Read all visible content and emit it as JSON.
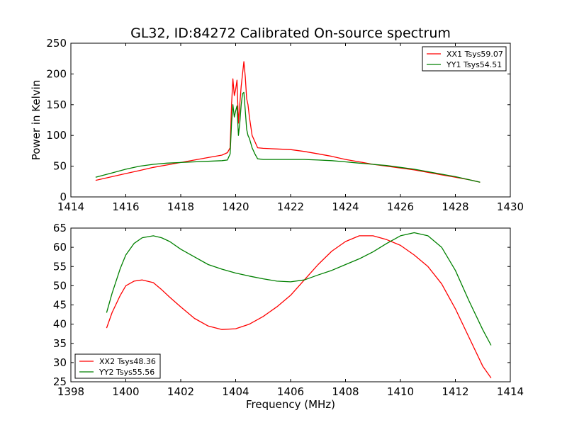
{
  "chart_data": [
    {
      "type": "line",
      "title": "GL32, ID:84272 Calibrated On-source spectrum",
      "xlabel": "",
      "ylabel": "Power in Kelvin",
      "xlim": [
        1414,
        1430
      ],
      "ylim": [
        0,
        250
      ],
      "xticks": [
        1414,
        1416,
        1418,
        1420,
        1422,
        1424,
        1426,
        1428,
        1430
      ],
      "yticks": [
        0,
        50,
        100,
        150,
        200,
        250
      ],
      "legend_position": "top-right",
      "series": [
        {
          "name": "XX1 Tsys59.07",
          "color": "#ff0000",
          "x": [
            1414.9,
            1415.5,
            1416.0,
            1416.5,
            1417.0,
            1417.5,
            1418.0,
            1418.5,
            1419.0,
            1419.5,
            1419.7,
            1419.8,
            1419.85,
            1419.9,
            1419.95,
            1420.0,
            1420.05,
            1420.1,
            1420.15,
            1420.2,
            1420.25,
            1420.3,
            1420.35,
            1420.4,
            1420.45,
            1420.5,
            1420.6,
            1420.7,
            1420.8,
            1421.0,
            1421.5,
            1422.0,
            1422.5,
            1423.0,
            1423.5,
            1424.0,
            1424.5,
            1425.0,
            1425.5,
            1426.0,
            1426.5,
            1427.0,
            1427.5,
            1428.0,
            1428.5,
            1428.9
          ],
          "y": [
            27,
            33,
            38,
            43,
            48,
            52,
            56,
            60,
            64,
            68,
            72,
            80,
            150,
            192,
            165,
            175,
            190,
            120,
            150,
            180,
            200,
            220,
            195,
            160,
            150,
            130,
            100,
            90,
            80,
            79,
            78,
            77,
            74,
            70,
            66,
            61,
            57,
            53,
            50,
            47,
            44,
            40,
            36,
            32,
            28,
            24
          ]
        },
        {
          "name": "YY1 Tsys54.51",
          "color": "#008000",
          "x": [
            1414.9,
            1415.5,
            1416.0,
            1416.5,
            1417.0,
            1417.5,
            1418.0,
            1418.5,
            1419.0,
            1419.5,
            1419.7,
            1419.8,
            1419.85,
            1419.9,
            1419.95,
            1420.0,
            1420.05,
            1420.1,
            1420.15,
            1420.2,
            1420.25,
            1420.3,
            1420.35,
            1420.4,
            1420.45,
            1420.5,
            1420.6,
            1420.7,
            1420.8,
            1421.0,
            1421.5,
            1422.0,
            1422.5,
            1423.0,
            1423.5,
            1424.0,
            1424.5,
            1425.0,
            1425.5,
            1426.0,
            1426.5,
            1427.0,
            1427.5,
            1428.0,
            1428.5,
            1428.9
          ],
          "y": [
            32,
            39,
            45,
            50,
            53,
            55,
            56,
            57,
            58,
            59,
            60,
            70,
            120,
            150,
            130,
            140,
            148,
            100,
            120,
            150,
            168,
            170,
            140,
            110,
            100,
            95,
            80,
            70,
            62,
            61,
            61,
            61,
            61,
            60,
            59,
            57,
            55,
            53,
            51,
            48,
            45,
            41,
            37,
            33,
            28,
            24
          ]
        }
      ]
    },
    {
      "type": "line",
      "title": "",
      "xlabel": "Frequency (MHz)",
      "ylabel": "",
      "xlim": [
        1398,
        1414
      ],
      "ylim": [
        25,
        65
      ],
      "xticks": [
        1398,
        1400,
        1402,
        1404,
        1406,
        1408,
        1410,
        1412,
        1414
      ],
      "yticks": [
        25,
        30,
        35,
        40,
        45,
        50,
        55,
        60,
        65
      ],
      "legend_position": "bottom-left",
      "series": [
        {
          "name": "XX2 Tsys48.36",
          "color": "#ff0000",
          "x": [
            1399.3,
            1399.5,
            1399.8,
            1400.0,
            1400.3,
            1400.6,
            1401.0,
            1401.3,
            1401.6,
            1402.0,
            1402.5,
            1403.0,
            1403.5,
            1404.0,
            1404.5,
            1405.0,
            1405.5,
            1406.0,
            1406.5,
            1407.0,
            1407.5,
            1408.0,
            1408.5,
            1409.0,
            1409.5,
            1410.0,
            1410.5,
            1411.0,
            1411.5,
            1412.0,
            1412.5,
            1413.0,
            1413.3
          ],
          "y": [
            39,
            43,
            47.5,
            50,
            51.2,
            51.5,
            50.8,
            49,
            47,
            44.5,
            41.5,
            39.5,
            38.6,
            38.8,
            40,
            42,
            44.5,
            47.5,
            51.5,
            55.5,
            59,
            61.5,
            63,
            63,
            62,
            60.5,
            58,
            55,
            50.5,
            44,
            36.5,
            29,
            26
          ]
        },
        {
          "name": "YY2 Tsys55.56",
          "color": "#008000",
          "x": [
            1399.3,
            1399.5,
            1399.8,
            1400.0,
            1400.3,
            1400.6,
            1401.0,
            1401.3,
            1401.6,
            1402.0,
            1402.5,
            1403.0,
            1403.5,
            1404.0,
            1404.5,
            1405.0,
            1405.5,
            1406.0,
            1406.5,
            1407.0,
            1407.5,
            1408.0,
            1408.5,
            1409.0,
            1409.5,
            1410.0,
            1410.5,
            1411.0,
            1411.5,
            1412.0,
            1412.5,
            1413.0,
            1413.3
          ],
          "y": [
            43,
            48,
            54.5,
            58,
            61,
            62.5,
            63,
            62.5,
            61.5,
            59.5,
            57.5,
            55.5,
            54.3,
            53.3,
            52.5,
            51.8,
            51.2,
            51,
            51.5,
            52.8,
            54,
            55.5,
            57,
            58.8,
            61,
            63,
            63.8,
            63,
            60,
            54,
            46,
            38.5,
            34.5
          ]
        }
      ]
    }
  ]
}
